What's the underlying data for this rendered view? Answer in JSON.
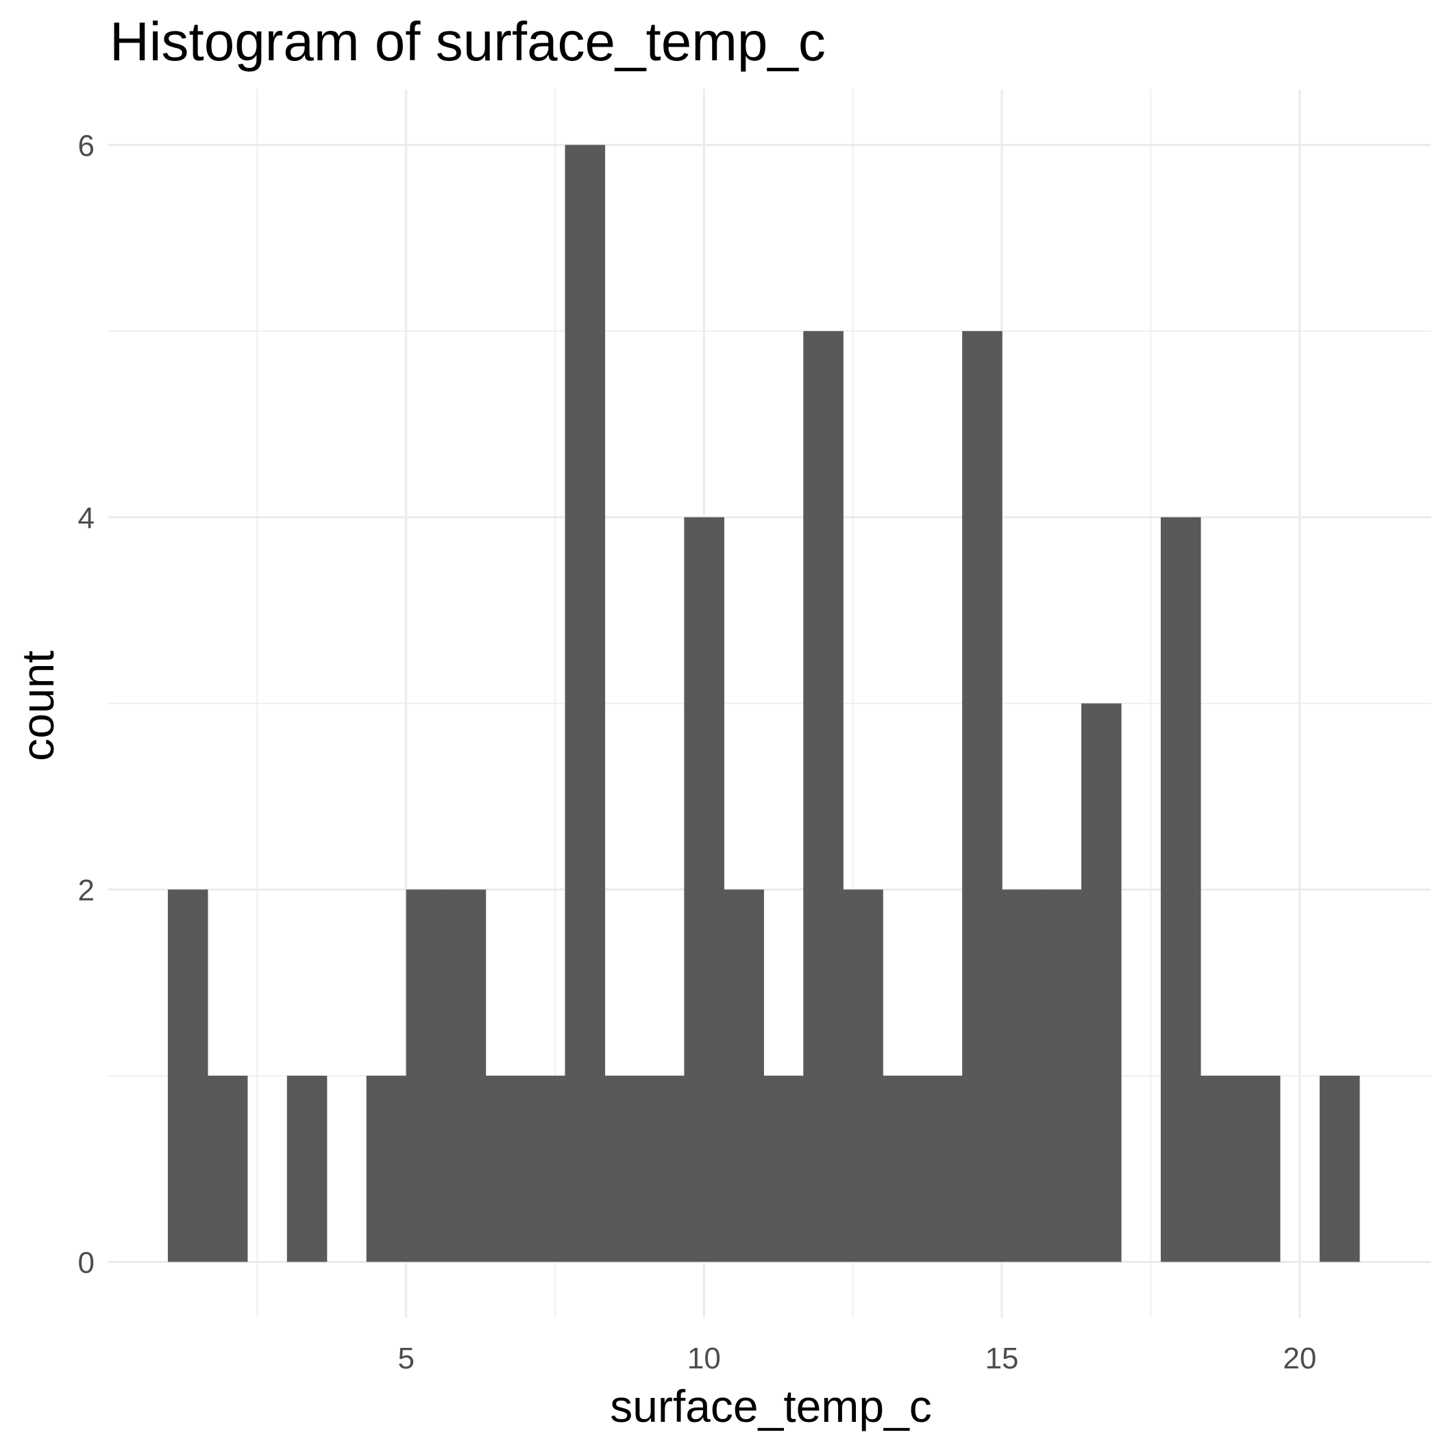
{
  "chart_data": {
    "type": "bar",
    "title": "Histogram of  surface_temp_c",
    "xlabel": "surface_temp_c",
    "ylabel": "count",
    "bar_color": "#595959",
    "grid_color": "#ebebeb",
    "xlim": [
      0.0,
      22.2
    ],
    "ylim": [
      -0.3,
      6.3
    ],
    "x_ticks": [
      5,
      10,
      15,
      20
    ],
    "y_ticks": [
      0,
      2,
      4,
      6
    ],
    "bin_start": 1.0,
    "bin_width": 0.6667,
    "counts": [
      2,
      1,
      0,
      1,
      0,
      1,
      2,
      2,
      1,
      1,
      6,
      1,
      1,
      4,
      2,
      1,
      5,
      2,
      1,
      1,
      5,
      2,
      2,
      3,
      0,
      4,
      1,
      1,
      0,
      1
    ],
    "grid": true,
    "legend": "none"
  }
}
